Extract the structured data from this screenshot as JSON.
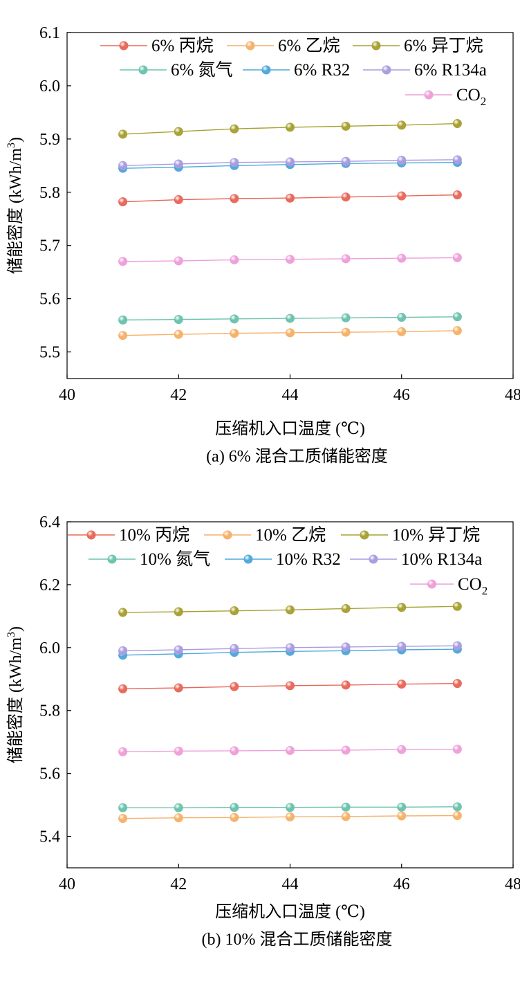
{
  "chart_data": [
    {
      "type": "line",
      "caption": "(a)  6% 混合工质储能密度",
      "xlabel": "压缩机入口温度 (℃)",
      "ylabel": "储能密度 (kWh/m",
      "ylabel_sup": "3",
      "ylabel_end": ")",
      "xlim": [
        40,
        48
      ],
      "ylim": [
        5.45,
        6.1
      ],
      "xticks": [
        40,
        42,
        44,
        46,
        48
      ],
      "yticks": [
        5.5,
        5.6,
        5.7,
        5.8,
        5.9,
        6.0,
        6.1
      ],
      "ytick_labels": [
        "5.5",
        "5.6",
        "5.7",
        "5.8",
        "5.9",
        "6.0",
        "6.1"
      ],
      "legend_position": "top",
      "grid": false,
      "x": [
        41,
        42,
        43,
        44,
        45,
        46,
        47
      ],
      "series": [
        {
          "name": "6% 丙烷",
          "color": "#e8685a",
          "values": [
            5.782,
            5.786,
            5.788,
            5.789,
            5.791,
            5.793,
            5.795
          ]
        },
        {
          "name": "6% 乙烷",
          "color": "#f5b169",
          "values": [
            5.531,
            5.533,
            5.535,
            5.536,
            5.537,
            5.538,
            5.54
          ]
        },
        {
          "name": "6% 异丁烷",
          "color": "#a8a032",
          "values": [
            5.909,
            5.914,
            5.919,
            5.922,
            5.924,
            5.926,
            5.929
          ]
        },
        {
          "name": "6% 氮气",
          "color": "#6cc2ae",
          "values": [
            5.56,
            5.561,
            5.562,
            5.563,
            5.564,
            5.565,
            5.566
          ]
        },
        {
          "name": "6% R32",
          "color": "#4fa7dc",
          "values": [
            5.845,
            5.847,
            5.85,
            5.852,
            5.854,
            5.855,
            5.856
          ]
        },
        {
          "name": "6% R134a",
          "color": "#a99ce0",
          "values": [
            5.85,
            5.853,
            5.856,
            5.857,
            5.858,
            5.86,
            5.861
          ]
        },
        {
          "name": "CO",
          "name_sub": "2",
          "color": "#ee9fd9",
          "values": [
            5.67,
            5.671,
            5.673,
            5.674,
            5.675,
            5.676,
            5.677
          ]
        }
      ]
    },
    {
      "type": "line",
      "caption": "(b)  10% 混合工质储能密度",
      "xlabel": "压缩机入口温度 (℃)",
      "ylabel": "储能密度 (kWh/m",
      "ylabel_sup": "3",
      "ylabel_end": ")",
      "xlim": [
        40,
        48
      ],
      "ylim": [
        5.3,
        6.4
      ],
      "xticks": [
        40,
        42,
        44,
        46,
        48
      ],
      "yticks": [
        5.4,
        5.6,
        5.8,
        6.0,
        6.2,
        6.4
      ],
      "ytick_labels": [
        "5.4",
        "5.6",
        "5.8",
        "6.0",
        "6.2",
        "6.4"
      ],
      "legend_position": "top",
      "grid": false,
      "x": [
        41,
        42,
        43,
        44,
        45,
        46,
        47
      ],
      "series": [
        {
          "name": "10% 丙烷",
          "color": "#e8685a",
          "values": [
            5.869,
            5.872,
            5.876,
            5.879,
            5.881,
            5.884,
            5.886
          ]
        },
        {
          "name": "10% 乙烷",
          "color": "#f5b169",
          "values": [
            5.457,
            5.459,
            5.46,
            5.462,
            5.463,
            5.465,
            5.466
          ]
        },
        {
          "name": "10% 异丁烷",
          "color": "#a8a032",
          "values": [
            6.112,
            6.114,
            6.117,
            6.12,
            6.124,
            6.128,
            6.131
          ]
        },
        {
          "name": "10% 氮气",
          "color": "#6cc2ae",
          "values": [
            5.491,
            5.491,
            5.492,
            5.492,
            5.493,
            5.493,
            5.494
          ]
        },
        {
          "name": "10% R32",
          "color": "#4fa7dc",
          "values": [
            5.976,
            5.98,
            5.985,
            5.988,
            5.99,
            5.993,
            5.995
          ]
        },
        {
          "name": "10% R134a",
          "color": "#a99ce0",
          "values": [
            5.99,
            5.993,
            5.997,
            6.0,
            6.002,
            6.004,
            6.006
          ]
        },
        {
          "name": "CO",
          "name_sub": "2",
          "color": "#ee9fd9",
          "values": [
            5.669,
            5.671,
            5.672,
            5.673,
            5.674,
            5.676,
            5.677
          ]
        }
      ]
    }
  ]
}
